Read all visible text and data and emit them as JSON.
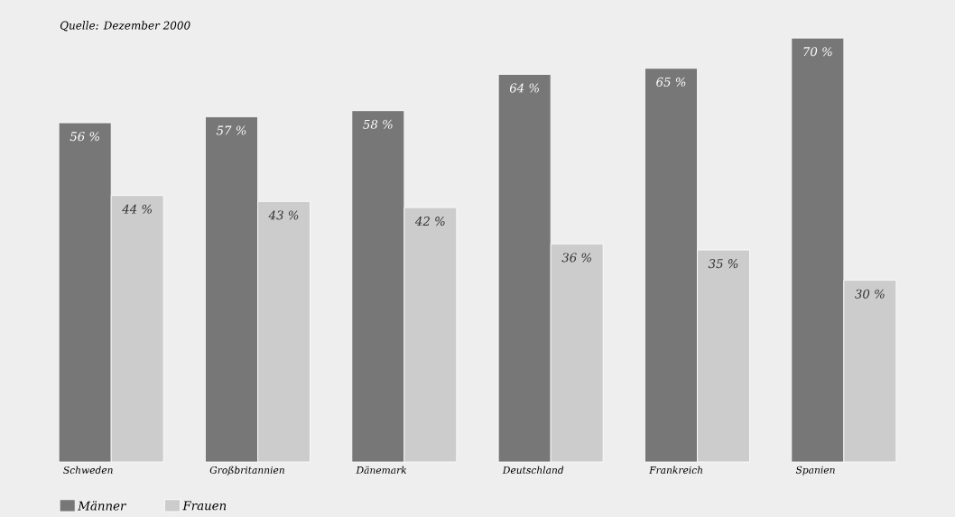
{
  "chart_data": {
    "type": "bar",
    "annotations": [
      "Quelle: Dezember 2000"
    ],
    "categories": [
      "Schweden",
      "Großbritannien",
      "Dänemark",
      "Deutschland",
      "Frankreich",
      "Spanien"
    ],
    "series": [
      {
        "name": "Männer",
        "color": "#777777",
        "values": [
          56,
          57,
          58,
          64,
          65,
          70
        ],
        "value_labels": [
          "56 %",
          "57 %",
          "58 %",
          "64 %",
          "65 %",
          "70 %"
        ]
      },
      {
        "name": "Frauen",
        "color": "#cccccc",
        "values": [
          44,
          43,
          42,
          36,
          35,
          30
        ],
        "value_labels": [
          "44 %",
          "43 %",
          "42 %",
          "36 %",
          "35 %",
          "30 %"
        ]
      }
    ],
    "legend": "bottom left"
  }
}
